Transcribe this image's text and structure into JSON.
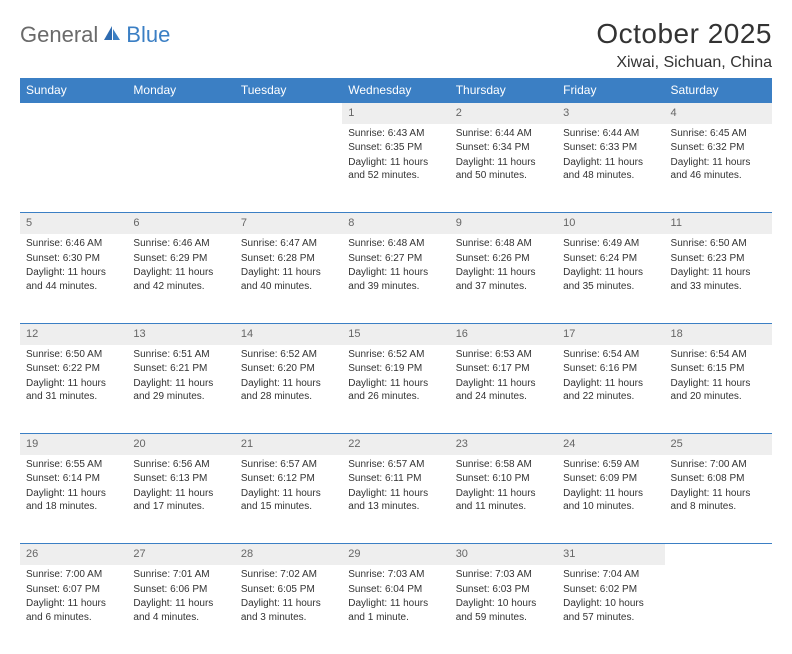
{
  "logo": {
    "part1": "General",
    "part2": "Blue"
  },
  "title": "October 2025",
  "location": "Xiwai, Sichuan, China",
  "colors": {
    "header_bg": "#3b7fc4",
    "header_text": "#ffffff",
    "daynum_bg": "#eeeeee",
    "daynum_text": "#666666",
    "body_text": "#333333",
    "border": "#3b7fc4"
  },
  "weekdays": [
    "Sunday",
    "Monday",
    "Tuesday",
    "Wednesday",
    "Thursday",
    "Friday",
    "Saturday"
  ],
  "weeks": [
    [
      null,
      null,
      null,
      {
        "n": "1",
        "sr": "6:43 AM",
        "ss": "6:35 PM",
        "dl": "11 hours and 52 minutes."
      },
      {
        "n": "2",
        "sr": "6:44 AM",
        "ss": "6:34 PM",
        "dl": "11 hours and 50 minutes."
      },
      {
        "n": "3",
        "sr": "6:44 AM",
        "ss": "6:33 PM",
        "dl": "11 hours and 48 minutes."
      },
      {
        "n": "4",
        "sr": "6:45 AM",
        "ss": "6:32 PM",
        "dl": "11 hours and 46 minutes."
      }
    ],
    [
      {
        "n": "5",
        "sr": "6:46 AM",
        "ss": "6:30 PM",
        "dl": "11 hours and 44 minutes."
      },
      {
        "n": "6",
        "sr": "6:46 AM",
        "ss": "6:29 PM",
        "dl": "11 hours and 42 minutes."
      },
      {
        "n": "7",
        "sr": "6:47 AM",
        "ss": "6:28 PM",
        "dl": "11 hours and 40 minutes."
      },
      {
        "n": "8",
        "sr": "6:48 AM",
        "ss": "6:27 PM",
        "dl": "11 hours and 39 minutes."
      },
      {
        "n": "9",
        "sr": "6:48 AM",
        "ss": "6:26 PM",
        "dl": "11 hours and 37 minutes."
      },
      {
        "n": "10",
        "sr": "6:49 AM",
        "ss": "6:24 PM",
        "dl": "11 hours and 35 minutes."
      },
      {
        "n": "11",
        "sr": "6:50 AM",
        "ss": "6:23 PM",
        "dl": "11 hours and 33 minutes."
      }
    ],
    [
      {
        "n": "12",
        "sr": "6:50 AM",
        "ss": "6:22 PM",
        "dl": "11 hours and 31 minutes."
      },
      {
        "n": "13",
        "sr": "6:51 AM",
        "ss": "6:21 PM",
        "dl": "11 hours and 29 minutes."
      },
      {
        "n": "14",
        "sr": "6:52 AM",
        "ss": "6:20 PM",
        "dl": "11 hours and 28 minutes."
      },
      {
        "n": "15",
        "sr": "6:52 AM",
        "ss": "6:19 PM",
        "dl": "11 hours and 26 minutes."
      },
      {
        "n": "16",
        "sr": "6:53 AM",
        "ss": "6:17 PM",
        "dl": "11 hours and 24 minutes."
      },
      {
        "n": "17",
        "sr": "6:54 AM",
        "ss": "6:16 PM",
        "dl": "11 hours and 22 minutes."
      },
      {
        "n": "18",
        "sr": "6:54 AM",
        "ss": "6:15 PM",
        "dl": "11 hours and 20 minutes."
      }
    ],
    [
      {
        "n": "19",
        "sr": "6:55 AM",
        "ss": "6:14 PM",
        "dl": "11 hours and 18 minutes."
      },
      {
        "n": "20",
        "sr": "6:56 AM",
        "ss": "6:13 PM",
        "dl": "11 hours and 17 minutes."
      },
      {
        "n": "21",
        "sr": "6:57 AM",
        "ss": "6:12 PM",
        "dl": "11 hours and 15 minutes."
      },
      {
        "n": "22",
        "sr": "6:57 AM",
        "ss": "6:11 PM",
        "dl": "11 hours and 13 minutes."
      },
      {
        "n": "23",
        "sr": "6:58 AM",
        "ss": "6:10 PM",
        "dl": "11 hours and 11 minutes."
      },
      {
        "n": "24",
        "sr": "6:59 AM",
        "ss": "6:09 PM",
        "dl": "11 hours and 10 minutes."
      },
      {
        "n": "25",
        "sr": "7:00 AM",
        "ss": "6:08 PM",
        "dl": "11 hours and 8 minutes."
      }
    ],
    [
      {
        "n": "26",
        "sr": "7:00 AM",
        "ss": "6:07 PM",
        "dl": "11 hours and 6 minutes."
      },
      {
        "n": "27",
        "sr": "7:01 AM",
        "ss": "6:06 PM",
        "dl": "11 hours and 4 minutes."
      },
      {
        "n": "28",
        "sr": "7:02 AM",
        "ss": "6:05 PM",
        "dl": "11 hours and 3 minutes."
      },
      {
        "n": "29",
        "sr": "7:03 AM",
        "ss": "6:04 PM",
        "dl": "11 hours and 1 minute."
      },
      {
        "n": "30",
        "sr": "7:03 AM",
        "ss": "6:03 PM",
        "dl": "10 hours and 59 minutes."
      },
      {
        "n": "31",
        "sr": "7:04 AM",
        "ss": "6:02 PM",
        "dl": "10 hours and 57 minutes."
      },
      null
    ]
  ],
  "labels": {
    "sunrise": "Sunrise:",
    "sunset": "Sunset:",
    "daylight": "Daylight:"
  }
}
